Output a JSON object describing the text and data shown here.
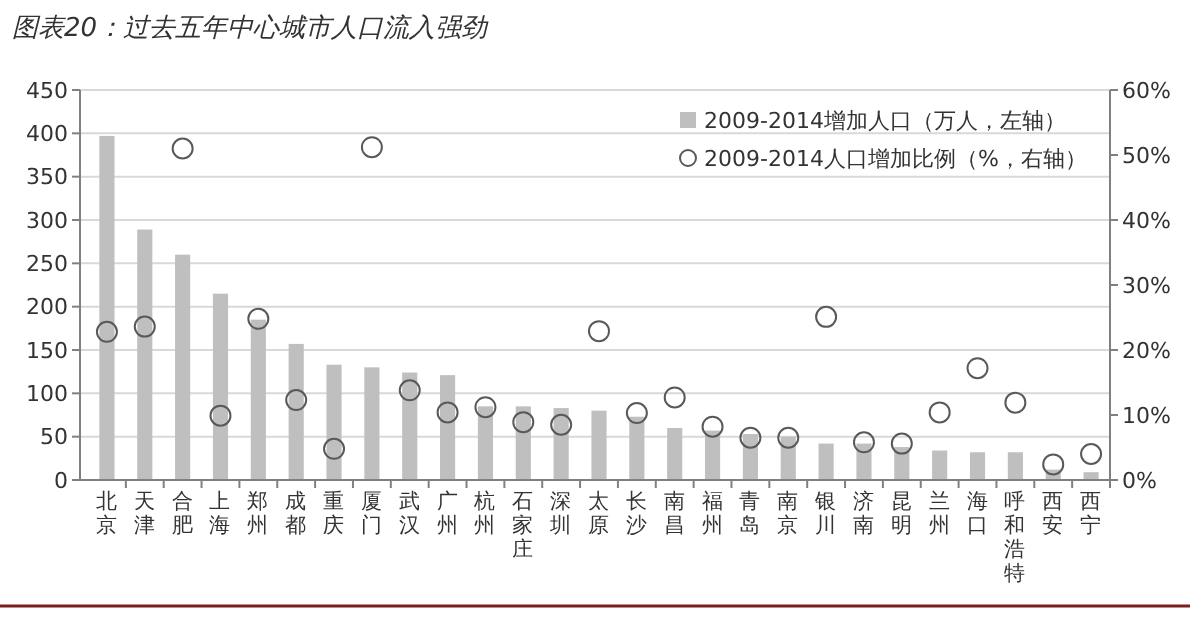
{
  "chart_data": {
    "type": "bar",
    "title": "图表20：过去五年中心城市人口流入强劲",
    "categories": [
      "北京",
      "天津",
      "合肥",
      "上海",
      "郑州",
      "成都",
      "重庆",
      "厦门",
      "武汉",
      "广州",
      "杭州",
      "石家庄",
      "深圳",
      "太原",
      "长沙",
      "南昌",
      "福州",
      "青岛",
      "南京",
      "银川",
      "济南",
      "昆明",
      "兰州",
      "海口",
      "呼和浩特",
      "西安",
      "西宁"
    ],
    "series": [
      {
        "name": "2009-2014增加人口（万人，左轴）",
        "color": "#bfbfbf",
        "values": [
          397,
          289,
          260,
          215,
          185,
          157,
          133,
          130,
          124,
          121,
          85,
          85,
          83,
          80,
          73,
          60,
          57,
          53,
          50,
          42,
          42,
          38,
          34,
          32,
          32,
          12,
          9
        ]
      },
      {
        "name": "2009-2014人口增加比例（%，右轴）",
        "type": "scatter",
        "axis": "y2",
        "color": "#595959",
        "values": [
          22.8,
          23.6,
          51,
          9.9,
          24.8,
          12.3,
          4.8,
          51.2,
          13.8,
          10.4,
          11.2,
          8.9,
          8.5,
          22.9,
          10.3,
          12.7,
          8.2,
          6.5,
          6.5,
          25.1,
          5.8,
          5.6,
          10.4,
          17.2,
          11.9,
          2.4,
          4
        ]
      }
    ],
    "ylim": [
      0,
      450
    ],
    "yticks": [
      0,
      50,
      100,
      150,
      200,
      250,
      300,
      350,
      400,
      450
    ],
    "y2lim": [
      0,
      60
    ],
    "y2ticks": [
      {
        "value": 0,
        "label": "0%"
      },
      {
        "value": 10,
        "label": "10%"
      },
      {
        "value": 20,
        "label": "20%"
      },
      {
        "value": 30,
        "label": "30%"
      },
      {
        "value": 40,
        "label": "40%"
      },
      {
        "value": 50,
        "label": "50%"
      },
      {
        "value": 60,
        "label": "60%"
      }
    ],
    "grid": "y",
    "legend": "top right",
    "marker": "circle"
  }
}
